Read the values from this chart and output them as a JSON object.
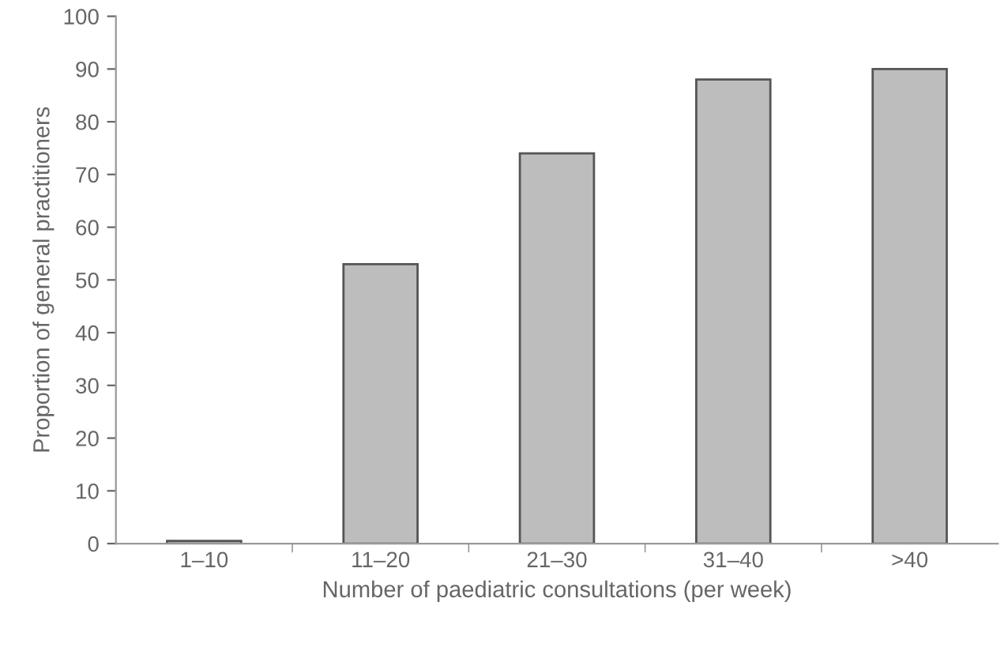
{
  "chart_data": {
    "type": "bar",
    "xlabel": "Number of paediatric consultations (per week)",
    "ylabel": "Proportion of general practitioners",
    "categories": [
      "1–10",
      "11–20",
      "21–30",
      "31–40",
      ">40"
    ],
    "values": [
      0.5,
      53,
      74,
      88,
      90
    ],
    "color": "#bdbdbd",
    "ylim": [
      0,
      100
    ],
    "yticks": [
      0,
      10,
      20,
      30,
      40,
      50,
      60,
      70,
      80,
      90,
      100
    ],
    "grid": false,
    "legend": false
  }
}
